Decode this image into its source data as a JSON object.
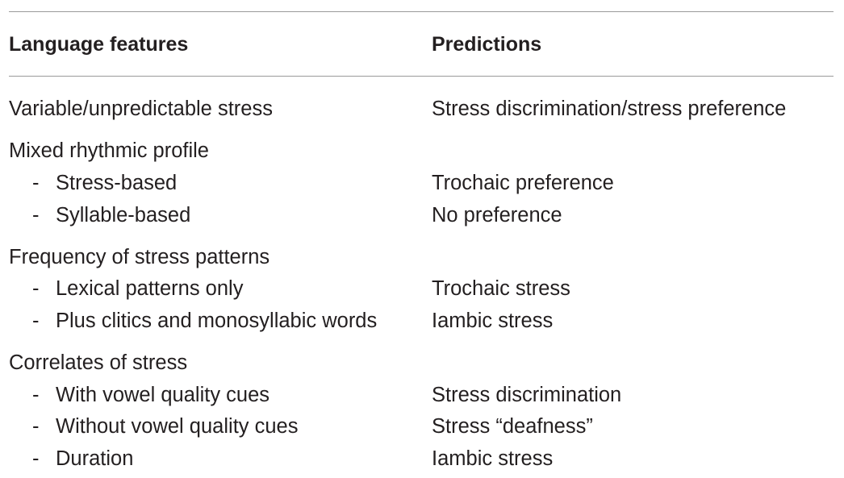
{
  "table": {
    "headers": {
      "features": "Language features",
      "predictions": "Predictions"
    },
    "rows": [
      {
        "feature": "Variable/unpredictable stress",
        "prediction": "Stress discrimination/stress preference",
        "indent": false
      },
      {
        "feature": "Mixed rhythmic profile",
        "prediction": "",
        "indent": false
      },
      {
        "feature": "Stress-based",
        "prediction": "Trochaic preference",
        "indent": true
      },
      {
        "feature": "Syllable-based",
        "prediction": "No preference",
        "indent": true
      },
      {
        "feature": "Frequency of stress patterns",
        "prediction": "",
        "indent": false
      },
      {
        "feature": "Lexical patterns only",
        "prediction": "Trochaic stress",
        "indent": true
      },
      {
        "feature": "Plus clitics and monosyllabic words",
        "prediction": "Iambic stress",
        "indent": true
      },
      {
        "feature": "Correlates of stress",
        "prediction": "",
        "indent": false
      },
      {
        "feature": "With vowel quality cues",
        "prediction": "Stress discrimination",
        "indent": true
      },
      {
        "feature": "Without vowel quality cues",
        "prediction": "Stress “deafness”",
        "indent": true
      },
      {
        "feature": "Duration",
        "prediction": "Iambic stress",
        "indent": true
      }
    ],
    "bullet": "-"
  }
}
